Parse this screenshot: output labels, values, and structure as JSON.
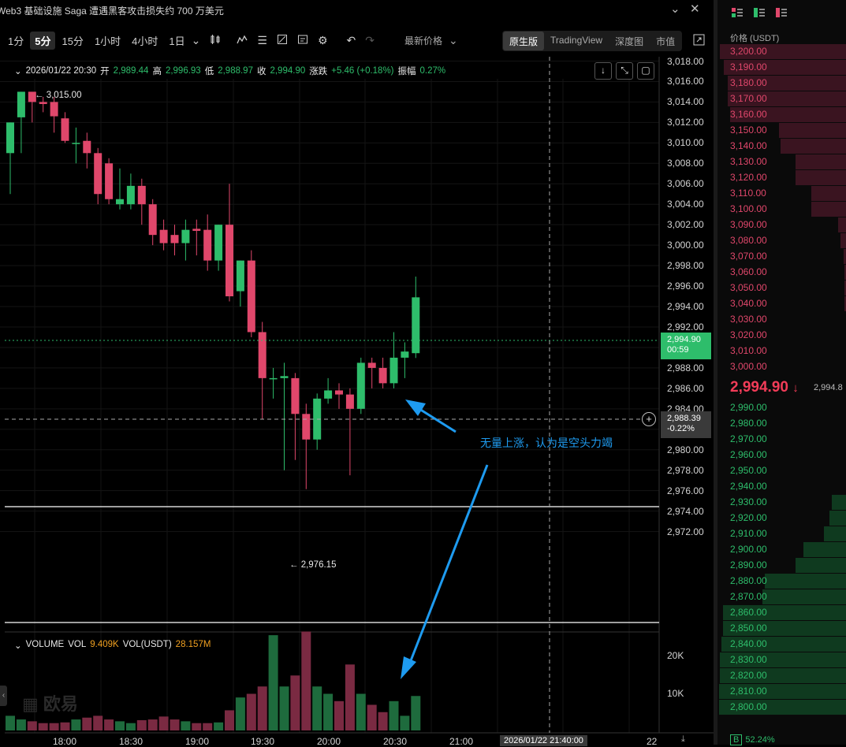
{
  "window": {
    "title": "Web3 基础设施 Saga 遭遇黑客攻击损失约 700 万美元"
  },
  "toolbar": {
    "timeframes": [
      "1分",
      "5分",
      "15分",
      "1小时",
      "4小时",
      "1日"
    ],
    "active_timeframe": "5分",
    "price_type": "最新价格",
    "views": [
      "原生版",
      "TradingView",
      "深度图",
      "市值"
    ],
    "active_view": "原生版"
  },
  "ohlc": {
    "datetime": "2026/01/22 20:30",
    "open_label": "开",
    "open": "2,989.44",
    "high_label": "高",
    "high": "2,996.93",
    "low_label": "低",
    "low": "2,988.97",
    "close_label": "收",
    "close": "2,994.90",
    "change_label": "涨跌",
    "change": "+5.46 (+0.18%)",
    "amplitude_label": "振幅",
    "amplitude": "0.27%"
  },
  "markers": {
    "high": "← 3,015.00",
    "low": "← 2,976.15"
  },
  "annotation": "无量上涨，认为是空头力竭",
  "price_axis": {
    "labels": [
      "3,018.00",
      "3,016.00",
      "3,014.00",
      "3,012.00",
      "3,010.00",
      "3,008.00",
      "3,006.00",
      "3,004.00",
      "3,002.00",
      "3,000.00",
      "2,998.00",
      "2,996.00",
      "2,994.00",
      "2,992.00",
      "2,990.00",
      "2,988.00",
      "2,986.00",
      "2,984.00",
      "2,982.00",
      "2,980.00",
      "2,978.00",
      "2,976.00",
      "2,974.00",
      "2,972.00"
    ],
    "last_price": "2,994.90",
    "countdown": "00:59",
    "cursor_price": "2,988.39",
    "cursor_change": "-0.22%"
  },
  "time_axis": {
    "labels": [
      "18:00",
      "18:30",
      "19:00",
      "19:30",
      "20:00",
      "20:30",
      "21:00",
      "22"
    ],
    "cursor": "2026/01/22 21:40:00"
  },
  "volume": {
    "title": "VOLUME",
    "vol_label": "VOL",
    "vol": "9.409K",
    "volu_label": "VOL(USDT)",
    "volu": "28.157M",
    "axis": [
      "20K",
      "10K"
    ]
  },
  "watermark": "欧易",
  "colors": {
    "up": "#2ebd6b",
    "down": "#e0476b",
    "annotation": "#1e9bf0"
  },
  "chart_data": {
    "type": "candlestick",
    "interval": "5m",
    "y_range": [
      2970.5,
      3019.5
    ],
    "series": [
      {
        "o": 3009.0,
        "h": 3012.0,
        "l": 3005.0,
        "c": 3012.0
      },
      {
        "o": 3012.5,
        "h": 3015.0,
        "l": 3009.0,
        "c": 3015.0
      },
      {
        "o": 3015.0,
        "h": 3015.0,
        "l": 3012.0,
        "c": 3014.0
      },
      {
        "o": 3014.0,
        "h": 3014.5,
        "l": 3013.0,
        "c": 3013.8
      },
      {
        "o": 3014.0,
        "h": 3014.5,
        "l": 3011.0,
        "c": 3012.6
      },
      {
        "o": 3012.4,
        "h": 3013.0,
        "l": 3010.0,
        "c": 3010.2
      },
      {
        "o": 3010.0,
        "h": 3011.5,
        "l": 3008.0,
        "c": 3010.0
      },
      {
        "o": 3010.2,
        "h": 3011.0,
        "l": 3007.5,
        "c": 3009.0
      },
      {
        "o": 3009.0,
        "h": 3009.5,
        "l": 3004.0,
        "c": 3005.0
      },
      {
        "o": 3008.0,
        "h": 3008.5,
        "l": 3004.0,
        "c": 3004.5
      },
      {
        "o": 3004.0,
        "h": 3007.5,
        "l": 3003.5,
        "c": 3004.5
      },
      {
        "o": 3004.0,
        "h": 3007.0,
        "l": 3003.5,
        "c": 3005.8
      },
      {
        "o": 3005.8,
        "h": 3006.5,
        "l": 3002.0,
        "c": 3004.0
      },
      {
        "o": 3004.0,
        "h": 3004.5,
        "l": 3000.0,
        "c": 3001.0
      },
      {
        "o": 3001.5,
        "h": 3002.5,
        "l": 2999.5,
        "c": 3000.2
      },
      {
        "o": 3001.0,
        "h": 3002.0,
        "l": 2999.0,
        "c": 3000.2
      },
      {
        "o": 3000.2,
        "h": 3002.5,
        "l": 2998.5,
        "c": 3001.5
      },
      {
        "o": 3001.6,
        "h": 3002.5,
        "l": 2999.0,
        "c": 3001.4
      },
      {
        "o": 3001.5,
        "h": 3003.0,
        "l": 2997.5,
        "c": 2998.5
      },
      {
        "o": 2998.5,
        "h": 3002.0,
        "l": 2997.5,
        "c": 3002.0
      },
      {
        "o": 3002.0,
        "h": 3006.0,
        "l": 2994.5,
        "c": 2995.0
      },
      {
        "o": 2995.5,
        "h": 2998.5,
        "l": 2994.0,
        "c": 2998.5
      },
      {
        "o": 2998.5,
        "h": 2999.5,
        "l": 2991.0,
        "c": 2991.5
      },
      {
        "o": 2991.5,
        "h": 2992.5,
        "l": 2983.0,
        "c": 2987.0
      },
      {
        "o": 2987.0,
        "h": 2988.0,
        "l": 2985.0,
        "c": 2987.0
      },
      {
        "o": 2987.0,
        "h": 2988.5,
        "l": 2978.0,
        "c": 2987.2
      },
      {
        "o": 2987.0,
        "h": 2987.5,
        "l": 2979.0,
        "c": 2983.5
      },
      {
        "o": 2983.5,
        "h": 2984.5,
        "l": 2976.15,
        "c": 2981.0
      },
      {
        "o": 2981.0,
        "h": 2985.5,
        "l": 2980.0,
        "c": 2985.0
      },
      {
        "o": 2985.0,
        "h": 2987.0,
        "l": 2984.5,
        "c": 2985.8
      },
      {
        "o": 2985.8,
        "h": 2986.5,
        "l": 2984.0,
        "c": 2985.4
      },
      {
        "o": 2985.4,
        "h": 2986.0,
        "l": 2977.5,
        "c": 2984.0
      },
      {
        "o": 2984.0,
        "h": 2989.0,
        "l": 2983.5,
        "c": 2988.5
      },
      {
        "o": 2988.5,
        "h": 2989.0,
        "l": 2986.0,
        "c": 2988.0
      },
      {
        "o": 2988.0,
        "h": 2989.0,
        "l": 2986.0,
        "c": 2986.5
      },
      {
        "o": 2986.5,
        "h": 2991.5,
        "l": 2986.0,
        "c": 2989.0
      },
      {
        "o": 2989.0,
        "h": 2990.5,
        "l": 2987.0,
        "c": 2989.6
      },
      {
        "o": 2989.44,
        "h": 2996.93,
        "l": 2988.97,
        "c": 2994.9
      }
    ],
    "volume_k": [
      4.0,
      3.0,
      2.5,
      2.0,
      2.0,
      2.2,
      3.0,
      3.5,
      4.0,
      3.0,
      2.5,
      2.0,
      2.8,
      3.0,
      3.8,
      3.0,
      2.5,
      2.0,
      2.0,
      2.2,
      5.5,
      9.0,
      10.0,
      12.0,
      26.0,
      12.0,
      15.0,
      27.0,
      12.0,
      10.0,
      8.0,
      18.0,
      10.0,
      7.0,
      5.0,
      8.0,
      4.0,
      9.409
    ]
  },
  "orderbook": {
    "header": "价格 (USDT)",
    "asks": [
      {
        "price": "3,200.00",
        "depth": 0.98
      },
      {
        "price": "3,190.00",
        "depth": 0.95
      },
      {
        "price": "3,180.00",
        "depth": 0.92
      },
      {
        "price": "3,170.00",
        "depth": 0.92
      },
      {
        "price": "3,160.00",
        "depth": 0.9
      },
      {
        "price": "3,150.00",
        "depth": 0.52
      },
      {
        "price": "3,140.00",
        "depth": 0.51
      },
      {
        "price": "3,130.00",
        "depth": 0.39
      },
      {
        "price": "3,120.00",
        "depth": 0.39
      },
      {
        "price": "3,110.00",
        "depth": 0.27
      },
      {
        "price": "3,100.00",
        "depth": 0.27
      },
      {
        "price": "3,090.00",
        "depth": 0.06
      },
      {
        "price": "3,080.00",
        "depth": 0.04
      },
      {
        "price": "3,070.00",
        "depth": 0.02
      },
      {
        "price": "3,060.00",
        "depth": 0.01
      },
      {
        "price": "3,050.00",
        "depth": 0.01
      },
      {
        "price": "3,040.00",
        "depth": 0.01
      },
      {
        "price": "3,030.00",
        "depth": 0.0
      },
      {
        "price": "3,020.00",
        "depth": 0.0
      },
      {
        "price": "3,010.00",
        "depth": 0.0
      },
      {
        "price": "3,000.00",
        "depth": 0.0
      }
    ],
    "mid_price": "2,994.90",
    "mid_arrow": "↓",
    "mid_mark": "2,994.8",
    "bids": [
      {
        "price": "2,990.00",
        "depth": 0.0
      },
      {
        "price": "2,980.00",
        "depth": 0.0
      },
      {
        "price": "2,970.00",
        "depth": 0.0
      },
      {
        "price": "2,960.00",
        "depth": 0.0
      },
      {
        "price": "2,950.00",
        "depth": 0.0
      },
      {
        "price": "2,940.00",
        "depth": 0.0
      },
      {
        "price": "2,930.00",
        "depth": 0.11
      },
      {
        "price": "2,920.00",
        "depth": 0.13
      },
      {
        "price": "2,910.00",
        "depth": 0.17
      },
      {
        "price": "2,900.00",
        "depth": 0.33
      },
      {
        "price": "2,890.00",
        "depth": 0.39
      },
      {
        "price": "2,880.00",
        "depth": 0.63
      },
      {
        "price": "2,870.00",
        "depth": 0.65
      },
      {
        "price": "2,860.00",
        "depth": 0.96
      },
      {
        "price": "2,850.00",
        "depth": 0.96
      },
      {
        "price": "2,840.00",
        "depth": 0.97
      },
      {
        "price": "2,830.00",
        "depth": 0.98
      },
      {
        "price": "2,820.00",
        "depth": 0.98
      },
      {
        "price": "2,810.00",
        "depth": 0.99
      },
      {
        "price": "2,800.00",
        "depth": 0.99
      }
    ],
    "ratio_badge": "B",
    "ratio": "52.24%"
  }
}
